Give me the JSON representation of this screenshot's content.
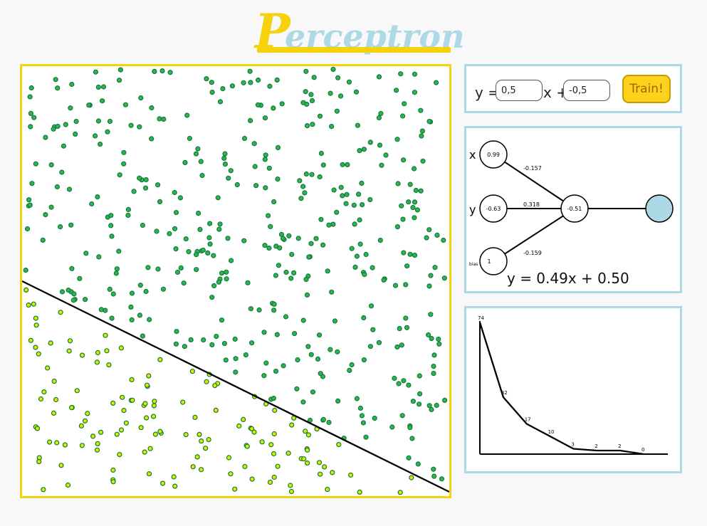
{
  "header": {
    "title_first": "P",
    "title_rest": "erceptron",
    "colors": {
      "first_letter": "#f5d20c",
      "rest": "#add8e6",
      "underline": "#f5d20c"
    }
  },
  "controls": {
    "y_label": "y =",
    "slope_value": "0,5",
    "x_plus_label": "x +",
    "intercept_value": "-0,5",
    "train_label": "Train!"
  },
  "network": {
    "inputs": [
      {
        "label": "x",
        "value": "0.99",
        "weight": "-0.157"
      },
      {
        "label": "y",
        "value": "-0.63",
        "weight": "0.318"
      },
      {
        "label": "bias",
        "value": "1",
        "weight": "-0.159"
      }
    ],
    "neuron_value": "-0.51",
    "output_color": "#add8e6",
    "equation": "y = 0.49x + 0.50"
  },
  "errors_chart": {
    "values": [
      74,
      32,
      17,
      10,
      3,
      2,
      2,
      0
    ]
  },
  "plot": {
    "colors": {
      "above": "#2db552",
      "below": "#d7f000",
      "stroke": "#14793a",
      "line": "#000000"
    }
  }
}
